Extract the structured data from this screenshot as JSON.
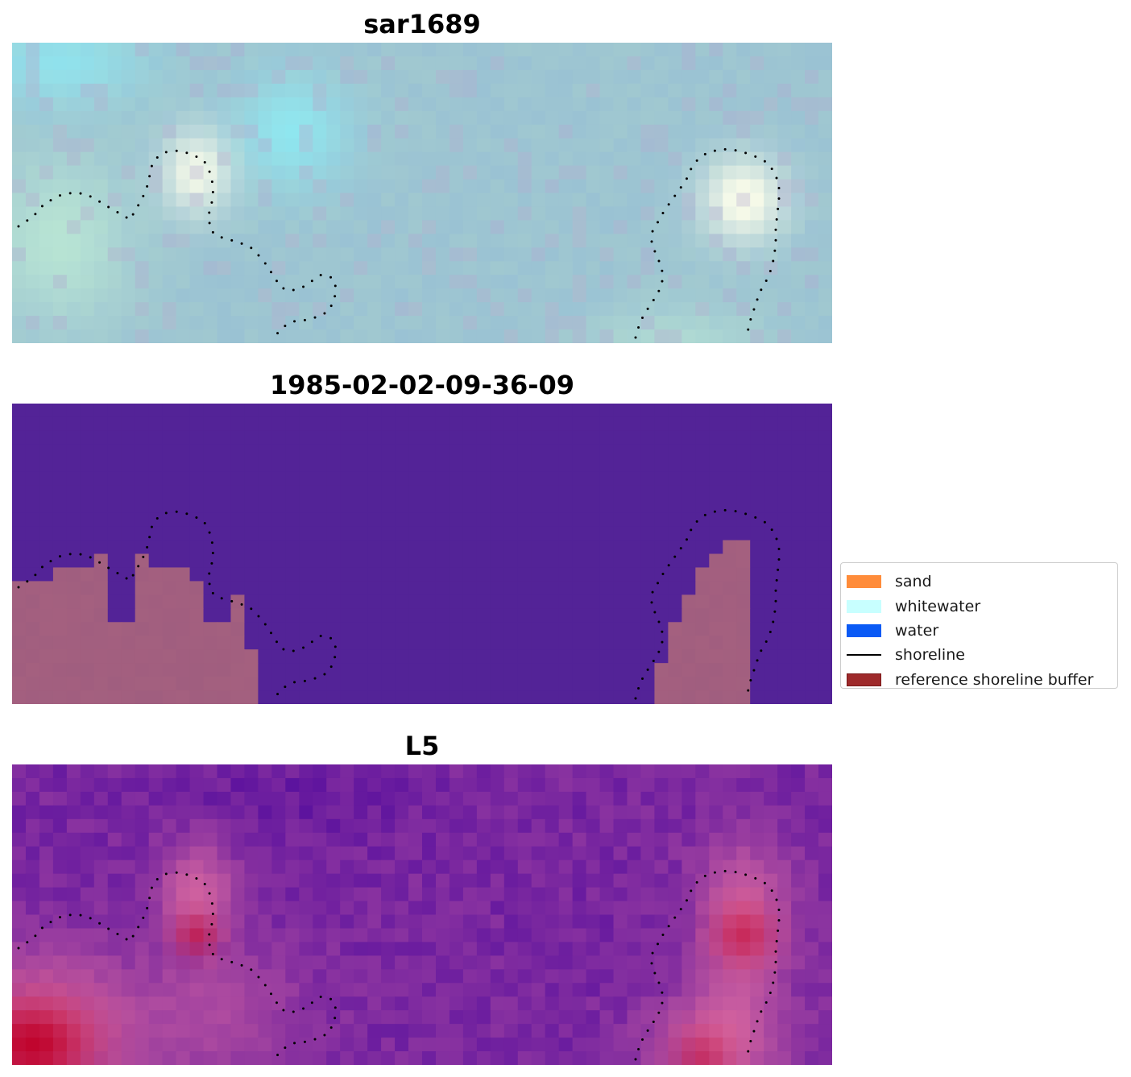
{
  "chart_data": [
    {
      "type": "heatmap",
      "title": "sar1689",
      "description_colors": {
        "base": "#9fc9d0"
      },
      "grid": false
    },
    {
      "type": "heatmap",
      "title": "1985-02-02-09-36-09",
      "colors": {
        "water_class": "#532397",
        "sand_overlay": "#a4607f"
      },
      "grid": false
    },
    {
      "type": "heatmap",
      "title": "L5",
      "colors": {
        "low": "#5a119e",
        "mid": "#8a33a0",
        "high": "#c0052e"
      },
      "grid": false
    }
  ],
  "legend": {
    "placement": "right",
    "items": [
      {
        "label": "sand",
        "color": "#ff8c3a",
        "kind": "patch"
      },
      {
        "label": "whitewater",
        "color": "#c8ffff",
        "kind": "patch"
      },
      {
        "label": "water",
        "color": "#0a5af5",
        "kind": "patch"
      },
      {
        "label": "shoreline",
        "color": "#000000",
        "kind": "line"
      },
      {
        "label": "reference shoreline buffer",
        "color": "#9e2a2b",
        "kind": "patch",
        "edge": "#7a1a1a"
      }
    ]
  }
}
